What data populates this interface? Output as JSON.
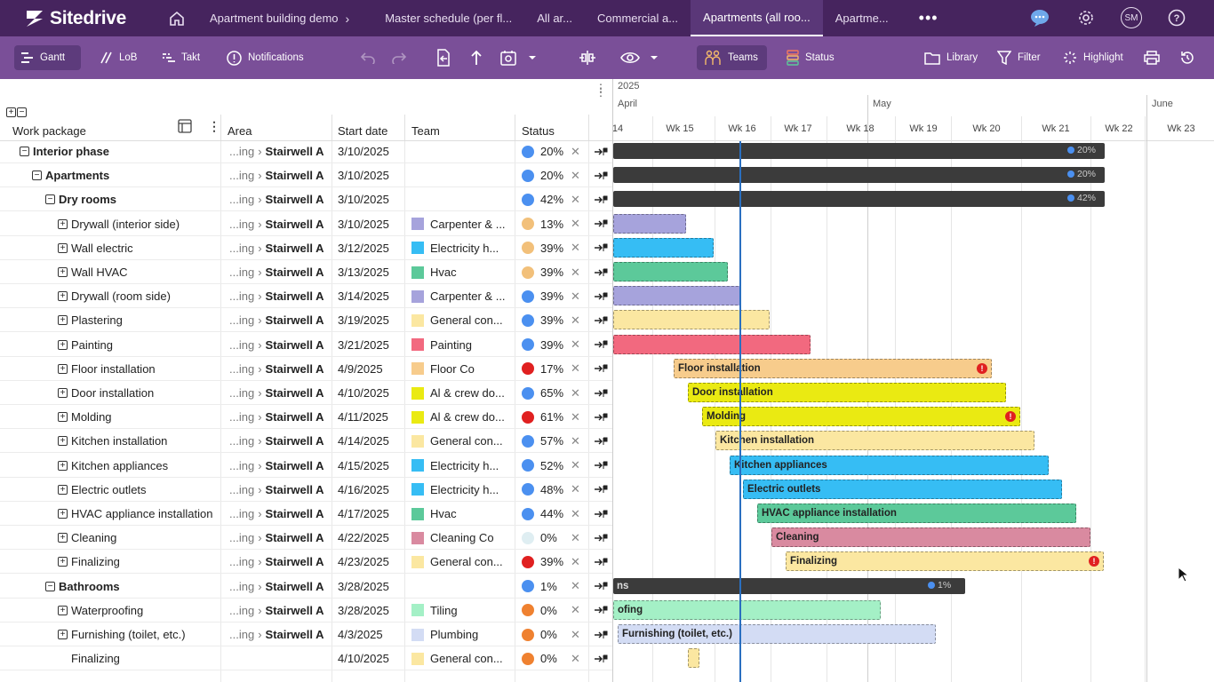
{
  "topbar": {
    "logo": "Sitedrive",
    "breadcrumbs": [
      "Apartment building demo",
      "Master schedule (per fl...",
      "All ar...",
      "Commercial a..."
    ],
    "tabs": [
      {
        "label": "Apartments (all roo...",
        "active": true
      },
      {
        "label": "Apartme...",
        "active": false
      }
    ],
    "more": "•••",
    "avatar": "SM"
  },
  "toolbar": {
    "gantt": "Gantt",
    "lob": "LoB",
    "takt": "Takt",
    "notifications": "Notifications",
    "teams": "Teams",
    "status": "Status",
    "library": "Library",
    "filter": "Filter",
    "highlight": "Highlight"
  },
  "grid": {
    "headers": {
      "work_package": "Work package",
      "area": "Area",
      "start_date": "Start date",
      "team": "Team",
      "status": "Status"
    },
    "rows": [
      {
        "name": "Interior phase",
        "level": 0,
        "bold": true,
        "area_prefix": "...ing",
        "area": "Stairwell A",
        "start": "3/10/2025",
        "team": "",
        "team_color": "",
        "pct": "20%",
        "status_color": "#4b90f0"
      },
      {
        "name": "Apartments",
        "level": 1,
        "bold": true,
        "area_prefix": "...ing",
        "area": "Stairwell A",
        "start": "3/10/2025",
        "team": "",
        "team_color": "",
        "pct": "20%",
        "status_color": "#4b90f0"
      },
      {
        "name": "Dry rooms",
        "level": 2,
        "bold": true,
        "area_prefix": "...ing",
        "area": "Stairwell A",
        "start": "3/10/2025",
        "team": "",
        "team_color": "",
        "pct": "42%",
        "status_color": "#4b90f0"
      },
      {
        "name": "Drywall (interior side)",
        "level": 3,
        "bold": false,
        "area_prefix": "...ing",
        "area": "Stairwell A",
        "start": "3/10/2025",
        "team": "Carpenter & ...",
        "team_color": "#a6a3dc",
        "pct": "13%",
        "status_color": "#f2c07a"
      },
      {
        "name": "Wall electric",
        "level": 3,
        "bold": false,
        "area_prefix": "...ing",
        "area": "Stairwell A",
        "start": "3/12/2025",
        "team": "Electricity h...",
        "team_color": "#36bdf4",
        "pct": "39%",
        "status_color": "#f2c07a"
      },
      {
        "name": "Wall HVAC",
        "level": 3,
        "bold": false,
        "area_prefix": "...ing",
        "area": "Stairwell A",
        "start": "3/13/2025",
        "team": "Hvac",
        "team_color": "#5cc99a",
        "pct": "39%",
        "status_color": "#f2c07a"
      },
      {
        "name": "Drywall (room side)",
        "level": 3,
        "bold": false,
        "area_prefix": "...ing",
        "area": "Stairwell A",
        "start": "3/14/2025",
        "team": "Carpenter & ...",
        "team_color": "#a6a3dc",
        "pct": "39%",
        "status_color": "#4b90f0"
      },
      {
        "name": "Plastering",
        "level": 3,
        "bold": false,
        "area_prefix": "...ing",
        "area": "Stairwell A",
        "start": "3/19/2025",
        "team": "General con...",
        "team_color": "#fbe7a1",
        "pct": "39%",
        "status_color": "#4b90f0"
      },
      {
        "name": "Painting",
        "level": 3,
        "bold": false,
        "area_prefix": "...ing",
        "area": "Stairwell A",
        "start": "3/21/2025",
        "team": "Painting",
        "team_color": "#f2697f",
        "pct": "39%",
        "status_color": "#4b90f0"
      },
      {
        "name": "Floor installation",
        "level": 3,
        "bold": false,
        "area_prefix": "...ing",
        "area": "Stairwell A",
        "start": "4/9/2025",
        "team": "Floor Co",
        "team_color": "#f7cc8c",
        "pct": "17%",
        "status_color": "#e02020"
      },
      {
        "name": "Door installation",
        "level": 3,
        "bold": false,
        "area_prefix": "...ing",
        "area": "Stairwell A",
        "start": "4/10/2025",
        "team": "Al & crew do...",
        "team_color": "#eaea12",
        "pct": "65%",
        "status_color": "#4b90f0"
      },
      {
        "name": "Molding",
        "level": 3,
        "bold": false,
        "area_prefix": "...ing",
        "area": "Stairwell A",
        "start": "4/11/2025",
        "team": "Al & crew do...",
        "team_color": "#eaea12",
        "pct": "61%",
        "status_color": "#e02020"
      },
      {
        "name": "Kitchen installation",
        "level": 3,
        "bold": false,
        "area_prefix": "...ing",
        "area": "Stairwell A",
        "start": "4/14/2025",
        "team": "General con...",
        "team_color": "#fbe7a1",
        "pct": "57%",
        "status_color": "#4b90f0"
      },
      {
        "name": "Kitchen appliances",
        "level": 3,
        "bold": false,
        "area_prefix": "...ing",
        "area": "Stairwell A",
        "start": "4/15/2025",
        "team": "Electricity h...",
        "team_color": "#36bdf4",
        "pct": "52%",
        "status_color": "#4b90f0"
      },
      {
        "name": "Electric outlets",
        "level": 3,
        "bold": false,
        "area_prefix": "...ing",
        "area": "Stairwell A",
        "start": "4/16/2025",
        "team": "Electricity h...",
        "team_color": "#36bdf4",
        "pct": "48%",
        "status_color": "#4b90f0"
      },
      {
        "name": "HVAC appliance installation",
        "level": 3,
        "bold": false,
        "area_prefix": "...ing",
        "area": "Stairwell A",
        "start": "4/17/2025",
        "team": "Hvac",
        "team_color": "#5cc99a",
        "pct": "44%",
        "status_color": "#4b90f0"
      },
      {
        "name": "Cleaning",
        "level": 3,
        "bold": false,
        "area_prefix": "...ing",
        "area": "Stairwell A",
        "start": "4/22/2025",
        "team": "Cleaning Co",
        "team_color": "#d98aa0",
        "pct": "0%",
        "status_color": "#dfeef2"
      },
      {
        "name": "Finalizing",
        "level": 3,
        "bold": false,
        "area_prefix": "...ing",
        "area": "Stairwell A",
        "start": "4/23/2025",
        "team": "General con...",
        "team_color": "#fbe7a1",
        "pct": "39%",
        "status_color": "#e02020"
      },
      {
        "name": "Bathrooms",
        "level": 2,
        "bold": true,
        "area_prefix": "...ing",
        "area": "Stairwell A",
        "start": "3/28/2025",
        "team": "",
        "team_color": "",
        "pct": "1%",
        "status_color": "#4b90f0"
      },
      {
        "name": "Waterproofing",
        "level": 3,
        "bold": false,
        "area_prefix": "...ing",
        "area": "Stairwell A",
        "start": "3/28/2025",
        "team": "Tiling",
        "team_color": "#a4f0c6",
        "pct": "0%",
        "status_color": "#ef8130"
      },
      {
        "name": "Furnishing (toilet, etc.)",
        "level": 3,
        "bold": false,
        "area_prefix": "...ing",
        "area": "Stairwell A",
        "start": "4/3/2025",
        "team": "Plumbing",
        "team_color": "#d3dcf4",
        "pct": "0%",
        "status_color": "#ef8130"
      },
      {
        "name": "Finalizing",
        "level": 3,
        "bold": false,
        "no_expander": true,
        "area_prefix": "",
        "area": "",
        "start": "4/10/2025",
        "team": "General con...",
        "team_color": "#fbe7a1",
        "pct": "0%",
        "status_color": "#ef8130"
      }
    ]
  },
  "timeline": {
    "year": "2025",
    "months": [
      "April",
      "May",
      "June"
    ],
    "weeks": [
      "14",
      "Wk 15",
      "Wk 16",
      "Wk 17",
      "Wk 18",
      "Wk 19",
      "Wk 20",
      "Wk 21",
      "Wk 22",
      "Wk 23"
    ],
    "bars": [
      {
        "label": "",
        "pct_label": "20%",
        "color": "#3b3b3b",
        "summary": true
      },
      {
        "label": "",
        "pct_label": "20%",
        "color": "#3b3b3b",
        "summary": true
      },
      {
        "label": "",
        "pct_label": "42%",
        "color": "#3b3b3b",
        "summary": true
      },
      {
        "label": "",
        "color": "#a6a3dc"
      },
      {
        "label": "",
        "color": "#36bdf4"
      },
      {
        "label": "",
        "color": "#5cc99a"
      },
      {
        "label": "",
        "color": "#a6a3dc"
      },
      {
        "label": "",
        "color": "#fbe7a1"
      },
      {
        "label": "",
        "color": "#f2697f"
      },
      {
        "label": "Floor installation",
        "color": "#f7cc8c",
        "alert": "!"
      },
      {
        "label": "Door installation",
        "color": "#eaea12"
      },
      {
        "label": "Molding",
        "color": "#eaea12",
        "alert": "!"
      },
      {
        "label": "Kitchen installation",
        "color": "#fbe7a1"
      },
      {
        "label": "Kitchen appliances",
        "color": "#36bdf4"
      },
      {
        "label": "Electric outlets",
        "color": "#36bdf4"
      },
      {
        "label": "HVAC appliance installation",
        "color": "#5cc99a"
      },
      {
        "label": "Cleaning",
        "color": "#d98aa0"
      },
      {
        "label": "Finalizing",
        "color": "#fbe7a1",
        "alert": "!"
      },
      {
        "label": "ns",
        "pct_label": "1%",
        "color": "#3b3b3b",
        "summary": true
      },
      {
        "label": "ofing",
        "color": "#a4f0c6"
      },
      {
        "label": "Furnishing (toilet, etc.)",
        "color": "#d3dcf4"
      },
      {
        "label": "",
        "color": "#fbe7a1"
      }
    ]
  }
}
